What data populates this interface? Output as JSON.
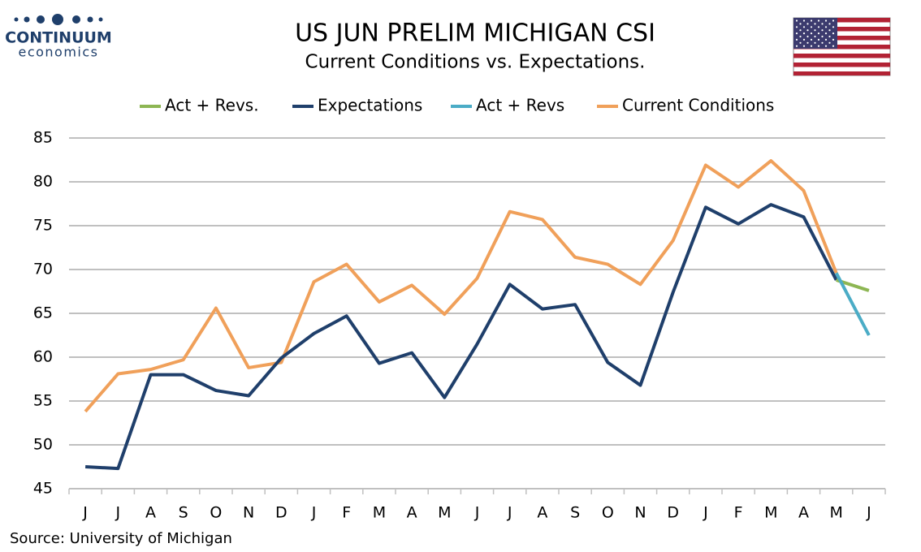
{
  "chart_data": {
    "type": "line",
    "title": "US JUN PRELIM MICHIGAN CSI",
    "subtitle": "Current Conditions vs. Expectations.",
    "logo": {
      "name": "CONTINUUM",
      "tagline": "economics"
    },
    "source": "Source: University of Michigan",
    "categories": [
      "J",
      "J",
      "A",
      "S",
      "O",
      "N",
      "D",
      "J",
      "F",
      "M",
      "A",
      "M",
      "J",
      "J",
      "A",
      "S",
      "O",
      "N",
      "D",
      "J",
      "F",
      "M",
      "A",
      "M",
      "J"
    ],
    "series": [
      {
        "name": "Act + Revs.",
        "color": "#8db653",
        "values": [
          null,
          null,
          null,
          null,
          null,
          null,
          null,
          null,
          null,
          null,
          null,
          null,
          null,
          null,
          null,
          null,
          null,
          null,
          null,
          null,
          null,
          null,
          null,
          68.8,
          67.6
        ]
      },
      {
        "name": "Expectations",
        "color": "#1f3f6b",
        "values": [
          47.5,
          47.3,
          58.0,
          58.0,
          56.2,
          55.6,
          59.9,
          62.7,
          64.7,
          59.3,
          60.5,
          55.4,
          61.5,
          68.3,
          65.5,
          66.0,
          59.4,
          56.8,
          67.4,
          77.1,
          75.2,
          77.4,
          76.0,
          68.8,
          null
        ]
      },
      {
        "name": "Act + Revs",
        "color": "#4bacc6",
        "values": [
          null,
          null,
          null,
          null,
          null,
          null,
          null,
          null,
          null,
          null,
          null,
          null,
          null,
          null,
          null,
          null,
          null,
          null,
          null,
          null,
          null,
          null,
          null,
          69.6,
          62.5
        ]
      },
      {
        "name": "Current Conditions",
        "color": "#f0a05a",
        "values": [
          53.8,
          58.1,
          58.6,
          59.7,
          65.6,
          58.8,
          59.4,
          68.6,
          70.6,
          66.3,
          68.2,
          64.9,
          69.0,
          76.6,
          75.7,
          71.4,
          70.6,
          68.3,
          73.3,
          81.9,
          79.4,
          82.4,
          79.0,
          69.6,
          null
        ]
      }
    ],
    "draw_order": [
      3,
      1,
      0,
      2
    ],
    "ylim": [
      45,
      85
    ],
    "yticks": [
      45,
      50,
      55,
      60,
      65,
      70,
      75,
      80,
      85
    ],
    "grid": true,
    "legend": "top"
  }
}
